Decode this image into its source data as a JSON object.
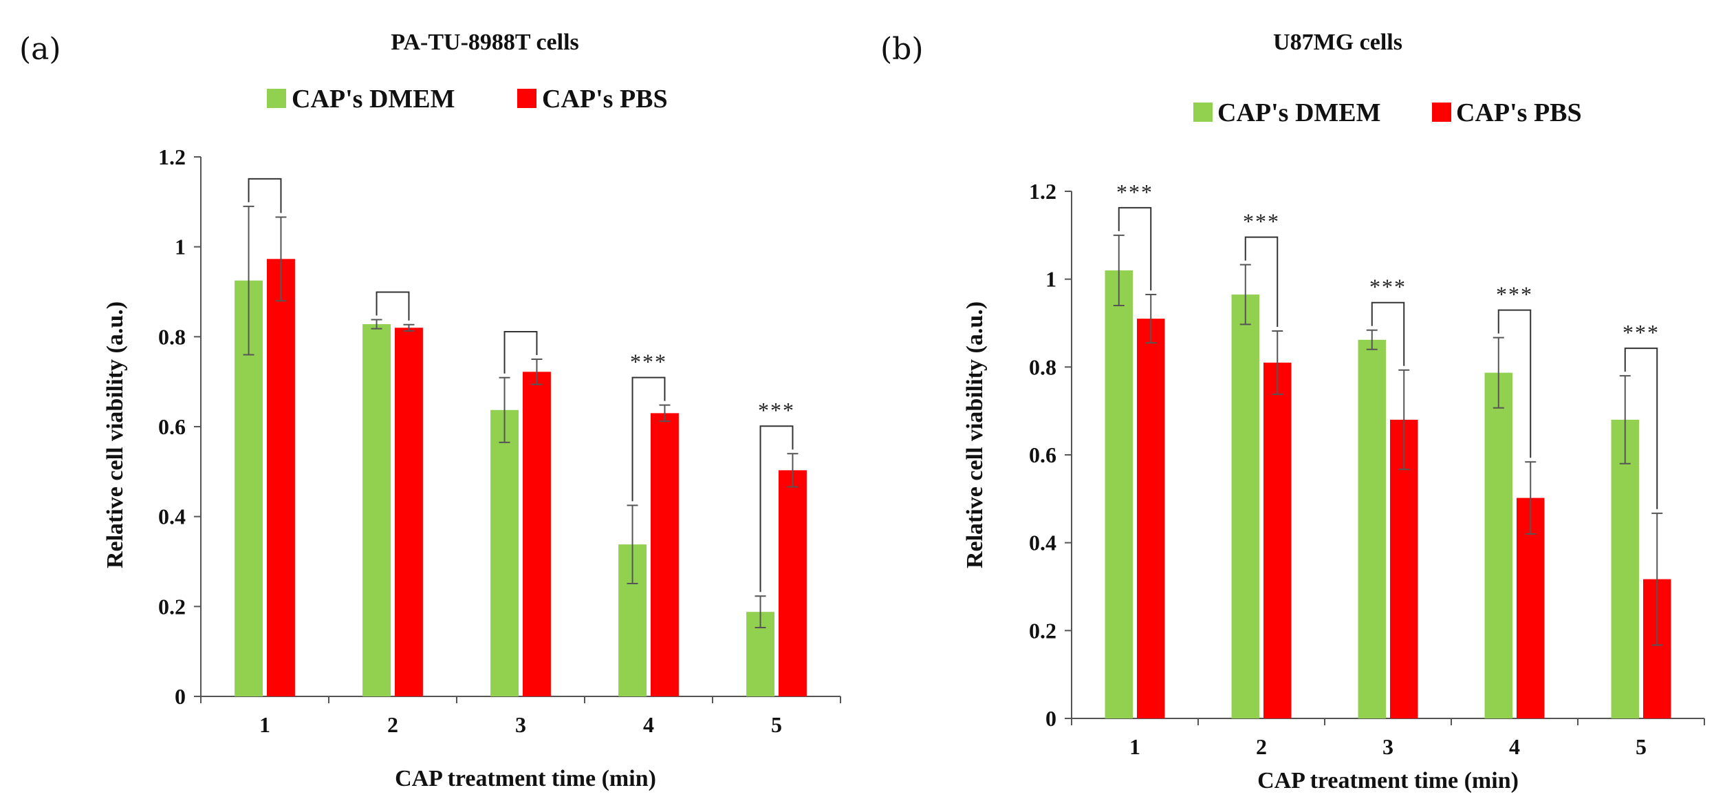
{
  "chart_data": [
    {
      "type": "bar",
      "panel_label": "(a)",
      "title": "PA-TU-8988T cells",
      "xlabel": "CAP treatment time (min)",
      "ylabel": "Relative cell viability (a.u.)",
      "categories": [
        "1",
        "2",
        "3",
        "4",
        "5"
      ],
      "ylim": [
        0,
        1.2
      ],
      "yticks": [
        "0",
        "0.2",
        "0.4",
        "0.6",
        "0.8",
        "1",
        "1.2"
      ],
      "series": [
        {
          "name": "CAP's DMEM",
          "color": "#92d050",
          "values": [
            0.925,
            0.828,
            0.637,
            0.338,
            0.188
          ],
          "errors": [
            0.165,
            0.01,
            0.072,
            0.087,
            0.035
          ]
        },
        {
          "name": "CAP's PBS",
          "color": "#ff0000",
          "values": [
            0.973,
            0.82,
            0.722,
            0.63,
            0.503
          ],
          "errors": [
            0.093,
            0.007,
            0.028,
            0.018,
            0.037
          ]
        }
      ],
      "significance": [
        "",
        "",
        "",
        "***",
        "***"
      ],
      "legend_position": "top"
    },
    {
      "type": "bar",
      "panel_label": "(b)",
      "title": "U87MG cells",
      "xlabel": "CAP treatment time (min)",
      "ylabel": "Relative cell viability (a.u.)",
      "categories": [
        "1",
        "2",
        "3",
        "4",
        "5"
      ],
      "ylim": [
        0,
        1.2
      ],
      "yticks": [
        "0",
        "0.2",
        "0.4",
        "0.6",
        "0.8",
        "1",
        "1.2"
      ],
      "series": [
        {
          "name": "CAP's DMEM",
          "color": "#92d050",
          "values": [
            1.02,
            0.965,
            0.862,
            0.787,
            0.68
          ],
          "errors": [
            0.08,
            0.068,
            0.022,
            0.08,
            0.1
          ]
        },
        {
          "name": "CAP's PBS",
          "color": "#ff0000",
          "values": [
            0.91,
            0.81,
            0.68,
            0.502,
            0.317
          ],
          "errors": [
            0.055,
            0.072,
            0.113,
            0.082,
            0.15
          ]
        }
      ],
      "significance": [
        "***",
        "***",
        "***",
        "***",
        "***"
      ],
      "legend_position": "top"
    }
  ]
}
